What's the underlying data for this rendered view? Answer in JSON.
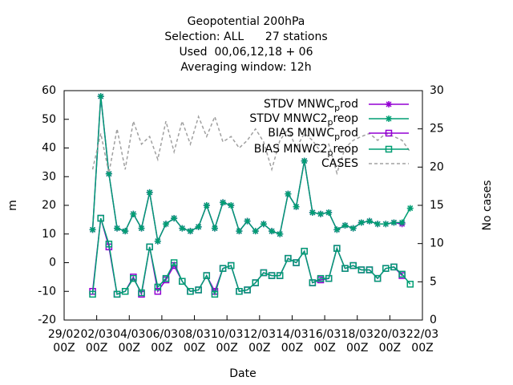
{
  "chart_data": {
    "type": "line",
    "title": "Geopotential 200hPa",
    "subtitle": [
      "Selection: ALL      27 stations",
      "Used  00,06,12,18 + 06",
      "Averaging window: 12h"
    ],
    "x_label": "Date",
    "y_label": "m",
    "y2_label": "No cases",
    "x": [
      "01/03 18Z",
      "02/03 06Z",
      "02/03 18Z",
      "03/03 06Z",
      "03/03 18Z",
      "04/03 06Z",
      "04/03 18Z",
      "05/03 06Z",
      "05/03 18Z",
      "06/03 06Z",
      "06/03 18Z",
      "07/03 06Z",
      "07/03 18Z",
      "08/03 06Z",
      "08/03 18Z",
      "09/03 06Z",
      "09/03 18Z",
      "10/03 06Z",
      "10/03 18Z",
      "11/03 06Z",
      "11/03 18Z",
      "12/03 06Z",
      "12/03 18Z",
      "13/03 06Z",
      "13/03 18Z",
      "14/03 06Z",
      "14/03 18Z",
      "15/03 06Z",
      "15/03 18Z",
      "16/03 06Z",
      "16/03 18Z",
      "17/03 06Z",
      "17/03 18Z",
      "18/03 06Z",
      "18/03 18Z",
      "19/03 06Z",
      "19/03 18Z",
      "20/03 06Z",
      "20/03 18Z",
      "21/03 06Z"
    ],
    "xlim": [
      "29/02\n00Z",
      "22/03\n00Z"
    ],
    "xticks": [
      "29/02\n00Z",
      "02/03\n00Z",
      "04/03\n00Z",
      "06/03\n00Z",
      "08/03\n00Z",
      "10/03\n00Z",
      "12/03\n00Z",
      "14/03\n00Z",
      "16/03\n00Z",
      "18/03\n00Z",
      "20/03\n00Z",
      "22/03\n00Z"
    ],
    "ylim": [
      -20,
      60
    ],
    "yticks": [
      -20,
      -10,
      0,
      10,
      20,
      30,
      40,
      50,
      60
    ],
    "y2lim": [
      0,
      30
    ],
    "y2ticks": [
      0,
      5,
      10,
      15,
      20,
      25,
      30
    ],
    "legend": "upper right",
    "series": [
      {
        "name": "STDV MNWC_prod",
        "color": "#9400d3",
        "marker": "star",
        "values": [
          11.5,
          58,
          31,
          12,
          11,
          17,
          12,
          24.5,
          7.5,
          13.5,
          15.5,
          12,
          11,
          12.5,
          20,
          12,
          21,
          20,
          11,
          14.5,
          11,
          13.5,
          11,
          10,
          24,
          19.5,
          35.5,
          17.5,
          17,
          17.5,
          11.5,
          13,
          12,
          14,
          14.5,
          13.5,
          13.5,
          14,
          13.5,
          null
        ]
      },
      {
        "name": "STDV MNWC2_preop",
        "color": "#009e73",
        "marker": "star",
        "values": [
          11.5,
          58,
          31,
          12,
          11,
          17,
          12,
          24.5,
          7.5,
          13.5,
          15.5,
          12,
          11,
          12.5,
          20,
          12,
          21,
          20,
          11,
          14.5,
          11,
          13.5,
          11,
          10,
          24,
          19.5,
          35.5,
          17.5,
          17,
          17.5,
          11.5,
          13,
          12,
          14,
          14.5,
          13.5,
          13.5,
          14,
          14,
          19
        ]
      },
      {
        "name": "BIAS MNWC_prod",
        "color": "#9400d3",
        "marker": "square",
        "values": [
          -10,
          15.5,
          5.5,
          -11,
          -10,
          -5,
          -11,
          5.5,
          -10,
          -6,
          -1,
          -6.5,
          -10,
          -9.5,
          -4.5,
          -10,
          -2,
          -1,
          -10,
          -9.5,
          -7,
          -3.5,
          -4.5,
          -4.5,
          1.5,
          0,
          4,
          -7,
          -6,
          -5.5,
          5,
          -2,
          -1,
          -2.5,
          -2.5,
          -5.5,
          -2,
          -1.5,
          -4.5,
          null
        ]
      },
      {
        "name": "BIAS MNWC2_preop",
        "color": "#009e73",
        "marker": "square",
        "values": [
          -11,
          15.5,
          6.5,
          -11,
          -10,
          -5.5,
          -10.5,
          5.5,
          -8.5,
          -5.5,
          0,
          -6.5,
          -10,
          -9.5,
          -4.5,
          -11,
          -2,
          -1,
          -10,
          -9.5,
          -7,
          -3.5,
          -4.5,
          -4.5,
          1.5,
          0,
          4,
          -7,
          -5.5,
          -5.5,
          5,
          -2,
          -1,
          -2.5,
          -2.5,
          -5.5,
          -2,
          -1.5,
          -4,
          -7.5
        ]
      },
      {
        "name": "CASES",
        "color": "#a0a0a0",
        "axis": "y2",
        "dash": true,
        "values": [
          19.7,
          24.4,
          19.2,
          25,
          19.7,
          26,
          23,
          24,
          21,
          26,
          22,
          26,
          23,
          26.6,
          24,
          26.6,
          23.3,
          24,
          22.5,
          23.5,
          25,
          23.3,
          19.7,
          23.5,
          25,
          22.5,
          24.4,
          23.5,
          22,
          23,
          19.2,
          22.5,
          23.5,
          24,
          24.4,
          23.5,
          24.4,
          24,
          23.5,
          22
        ]
      }
    ]
  }
}
